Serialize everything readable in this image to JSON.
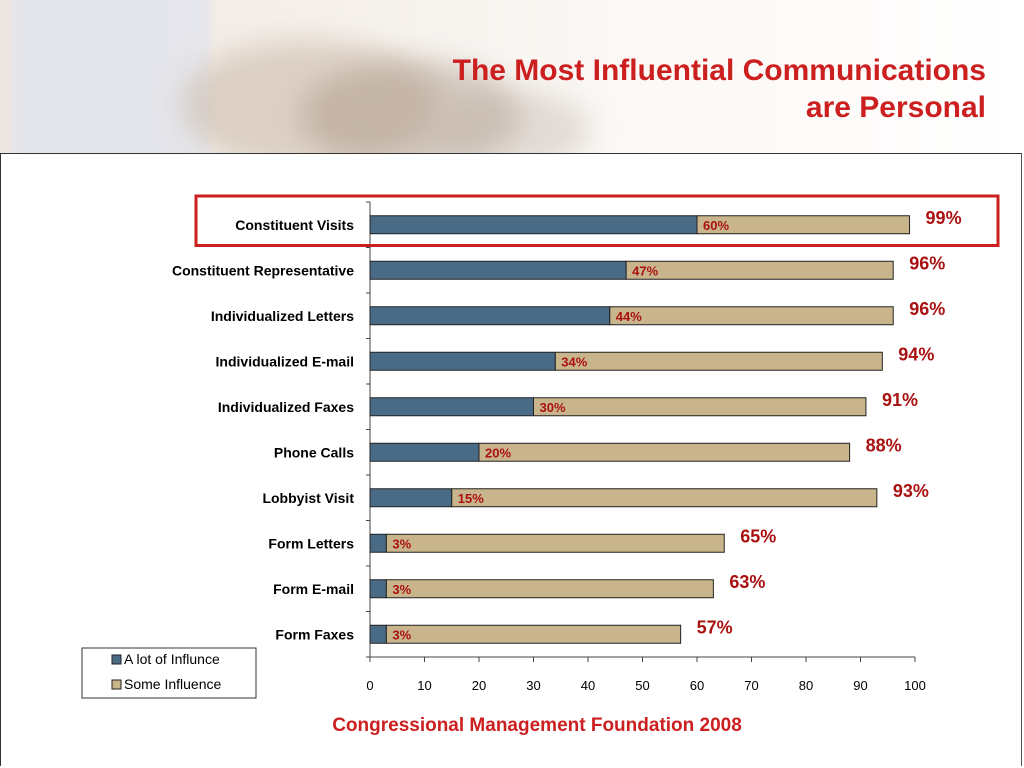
{
  "slide": {
    "title_line1": "The Most Influential Communications",
    "title_line2": "are Personal",
    "footer": "Congressional Management Foundation 2008"
  },
  "chart_data": {
    "type": "bar",
    "orientation": "horizontal",
    "stacked": true,
    "categories": [
      "Constituent Visits",
      "Constituent Representative",
      "Individualized Letters",
      "Individualized E-mail",
      "Individualized Faxes",
      "Phone Calls",
      "Lobbyist Visit",
      "Form Letters",
      "Form E-mail",
      "Form Faxes"
    ],
    "series": [
      {
        "name": "A lot of Influnce",
        "color": "#4a6b86",
        "values": [
          60,
          47,
          44,
          34,
          30,
          20,
          15,
          3,
          3,
          3
        ]
      },
      {
        "name": "Some Influence",
        "color": "#c9b58b",
        "values": [
          39,
          49,
          52,
          60,
          61,
          68,
          78,
          62,
          60,
          54
        ]
      }
    ],
    "segment_labels": [
      "60%",
      "47%",
      "44%",
      "34%",
      "30%",
      "20%",
      "15%",
      "3%",
      "3%",
      "3%"
    ],
    "total_labels": [
      "99%",
      "96%",
      "96%",
      "94%",
      "91%",
      "88%",
      "93%",
      "65%",
      "63%",
      "57%"
    ],
    "xlim": [
      0,
      100
    ],
    "xticks": [
      0,
      10,
      20,
      30,
      40,
      50,
      60,
      70,
      80,
      90,
      100
    ],
    "legend_position": "bottom-left",
    "highlighted_category": "Constituent Visits",
    "label_color": "#aa1111",
    "highlight_color": "#cc1f1f"
  }
}
